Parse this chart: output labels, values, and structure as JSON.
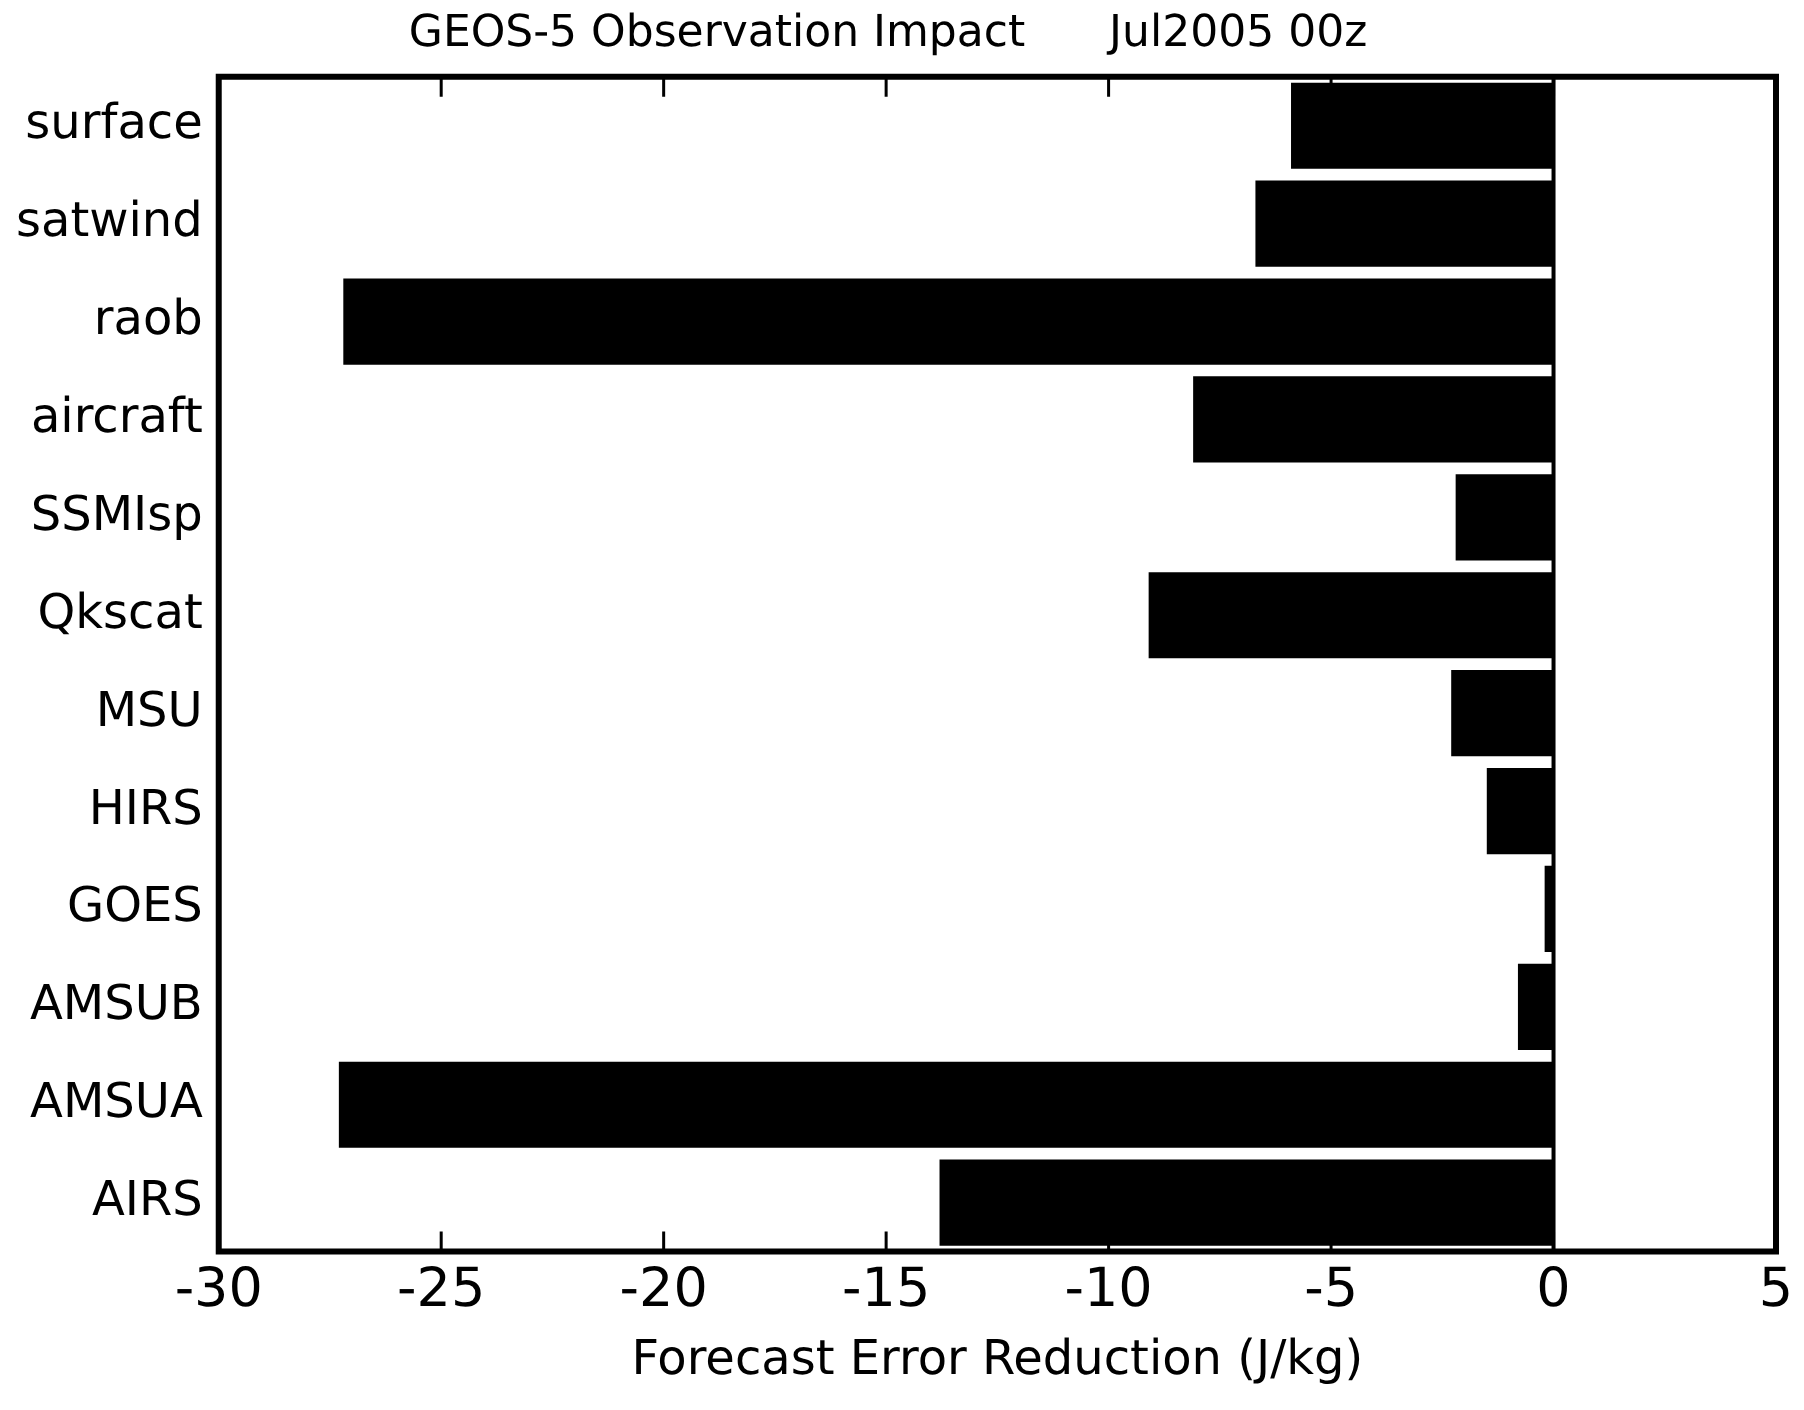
{
  "chart_data": {
    "type": "bar",
    "orientation": "horizontal",
    "title": "GEOS-5 Observation Impact      Jul2005 00z",
    "xlabel": "Forecast Error Reduction (J/kg)",
    "categories": [
      "surface",
      "satwind",
      "raob",
      "aircraft",
      "SSMIsp",
      "Qkscat",
      "MSU",
      "HIRS",
      "GOES",
      "AMSUB",
      "AMSUA",
      "AIRS"
    ],
    "values": [
      -5.9,
      -6.7,
      -27.2,
      -8.1,
      -2.2,
      -9.1,
      -2.3,
      -1.5,
      -0.2,
      -0.8,
      -27.3,
      -13.8
    ],
    "color": "#000000",
    "xlim": [
      -30,
      5
    ],
    "xticks": [
      -30,
      -25,
      -20,
      -15,
      -10,
      -5,
      0,
      5
    ],
    "grid": false,
    "legend": false,
    "ref_lines": [
      {
        "axis": "x",
        "value": 0,
        "color": "#000000"
      }
    ]
  }
}
